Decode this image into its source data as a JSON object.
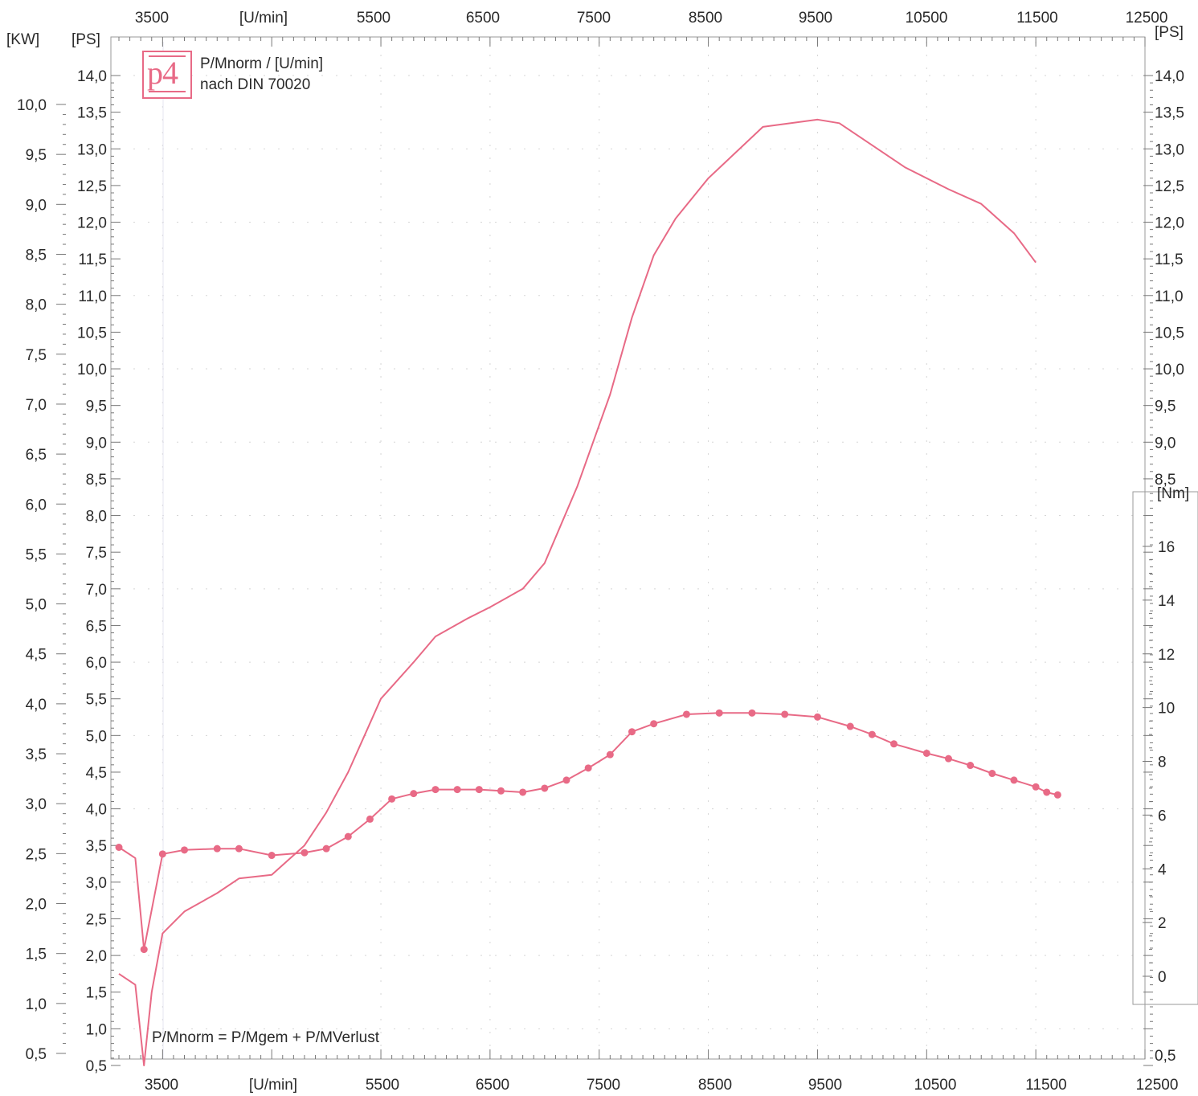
{
  "chart_data": {
    "type": "line",
    "legend_lines": [
      "P/Mnorm / [U/min]",
      "nach DIN 70020"
    ],
    "logo_text": "p4",
    "formula": "P/Mnorm = P/Mgem + P/MVerlust",
    "x_axis": {
      "unit_label": "[U/min]",
      "range": [
        3100,
        12500
      ],
      "tick_labels": [
        "3500",
        "5500",
        "6500",
        "7500",
        "8500",
        "9500",
        "10500",
        "11500",
        "12500"
      ],
      "tick_values": [
        3500,
        5500,
        6500,
        7500,
        8500,
        9500,
        10500,
        11500,
        12500
      ],
      "unit_after_value": 3500
    },
    "left_kw_axis": {
      "unit_label": "[KW]",
      "range": [
        0.5,
        10.0
      ],
      "tick_labels": [
        "10,0",
        "9,5",
        "9,0",
        "8,5",
        "8,0",
        "7,5",
        "7,0",
        "6,5",
        "6,0",
        "5,5",
        "5,0",
        "4,5",
        "4,0",
        "3,5",
        "3,0",
        "2,5",
        "2,0",
        "1,5",
        "1,0",
        "0,5"
      ]
    },
    "left_ps_axis": {
      "unit_label": "[PS]",
      "range": [
        0.5,
        14.0
      ],
      "tick_labels": [
        "14,0",
        "13,5",
        "13,0",
        "12,5",
        "12,0",
        "11,5",
        "11,0",
        "10,5",
        "10,0",
        "9,5",
        "9,0",
        "8,5",
        "8,0",
        "7,5",
        "7,0",
        "6,5",
        "6,0",
        "5,5",
        "5,0",
        "4,5",
        "4,0",
        "3,5",
        "3,0",
        "2,5",
        "2,0",
        "1,5",
        "1,0",
        "0,5"
      ]
    },
    "right_ps_axis": {
      "unit_label": "[PS]",
      "range": [
        0.5,
        14.0
      ],
      "tick_labels": [
        "14,0",
        "13,5",
        "13,0",
        "12,5",
        "12,0",
        "11,5",
        "11,0",
        "10,5",
        "10,0",
        "9,5",
        "9,0",
        "8,5",
        "0,5"
      ]
    },
    "right_nm_axis": {
      "unit_label": "[Nm]",
      "range": [
        0,
        16
      ],
      "tick_labels": [
        "16",
        "14",
        "12",
        "10",
        "8",
        "6",
        "4",
        "2",
        "0"
      ]
    },
    "series": [
      {
        "axis": "ps",
        "color": "#e86a86",
        "x": [
          3100,
          3250,
          3330,
          3400,
          3500,
          3700,
          4000,
          4200,
          4500,
          4800,
          5000,
          5200,
          5350,
          5500,
          5800,
          6000,
          6300,
          6500,
          6800,
          7000,
          7300,
          7600,
          7800,
          8000,
          8200,
          8500,
          9000,
          9500,
          9700,
          9900,
          10300,
          10700,
          11000,
          11300,
          11500
        ],
        "y": [
          1.75,
          1.6,
          0.5,
          1.5,
          2.3,
          2.6,
          2.85,
          3.05,
          3.1,
          3.5,
          3.95,
          4.5,
          5.0,
          5.5,
          6.0,
          6.35,
          6.6,
          6.75,
          7.0,
          7.35,
          8.4,
          9.65,
          10.7,
          11.55,
          12.05,
          12.6,
          13.3,
          13.4,
          13.35,
          13.15,
          12.75,
          12.45,
          12.25,
          11.85,
          11.45
        ]
      },
      {
        "axis": "nm",
        "color": "#e86a86",
        "markers": true,
        "x": [
          3100,
          3250,
          3330,
          3500,
          3700,
          4000,
          4200,
          4500,
          4800,
          5000,
          5200,
          5400,
          5600,
          5800,
          6000,
          6200,
          6400,
          6600,
          6800,
          7000,
          7200,
          7400,
          7600,
          7800,
          8000,
          8300,
          8600,
          8900,
          9200,
          9500,
          9800,
          10000,
          10200,
          10500,
          10700,
          10900,
          11100,
          11300,
          11500,
          11600,
          11700
        ],
        "y": [
          4.8,
          4.4,
          1.0,
          4.55,
          4.7,
          4.75,
          4.75,
          4.5,
          4.6,
          4.75,
          5.2,
          5.85,
          6.6,
          6.8,
          6.95,
          6.95,
          6.95,
          6.9,
          6.85,
          7.0,
          7.3,
          7.75,
          8.25,
          9.1,
          9.4,
          9.75,
          9.8,
          9.8,
          9.75,
          9.65,
          9.3,
          9.0,
          8.65,
          8.3,
          8.1,
          7.85,
          7.55,
          7.3,
          7.05,
          6.85,
          6.75
        ]
      }
    ]
  }
}
